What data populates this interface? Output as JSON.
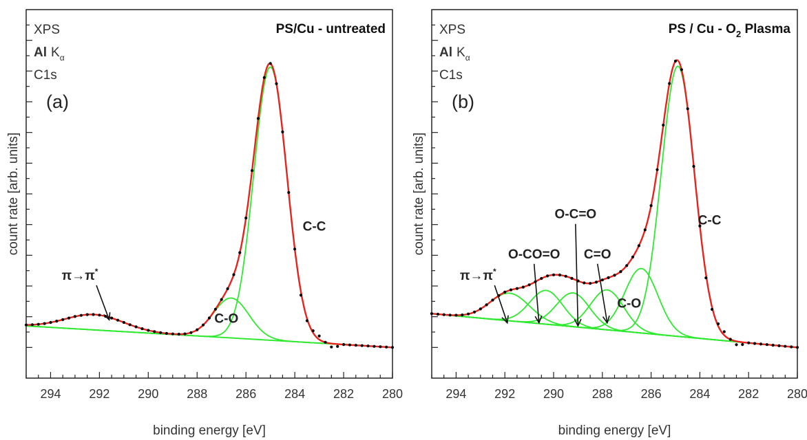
{
  "colors": {
    "envelope": "#e8221c",
    "component": "#2eea2e",
    "data": "#000000",
    "axis": "#222222"
  },
  "chart_data": [
    {
      "panel": "a",
      "type": "line",
      "title": "PS/Cu - untreated",
      "corner_labels": {
        "technique": "XPS",
        "source": "Al",
        "source_sub": "K",
        "source_sub2": "α",
        "line": "C1s",
        "panel_label": "(a)"
      },
      "xlabel": "binding energy [eV]",
      "ylabel": "count rate [arb. units]",
      "xlim": [
        295,
        280
      ],
      "xticks": [
        294,
        292,
        290,
        288,
        286,
        284,
        282,
        280
      ],
      "ylim": [
        -0.1,
        1.1
      ],
      "x_reversed": true,
      "y_tick_labels": false,
      "background": {
        "name": "",
        "x": [
          295,
          280
        ],
        "y": [
          0.07,
          0.0
        ]
      },
      "components": [
        {
          "label": "C-C",
          "center": 285.0,
          "height": 0.89,
          "fwhm": 1.6
        },
        {
          "label": "C-O",
          "center": 286.6,
          "height": 0.13,
          "fwhm": 1.7
        },
        {
          "label": "π→π*",
          "center": 292.2,
          "height": 0.05,
          "fwhm": 2.8
        }
      ],
      "measured": {
        "x_start": 295,
        "x_end": 280,
        "step": 0.25
      },
      "annotations": [
        {
          "text": "C-C",
          "at_x": 283.2,
          "at_y": 0.38
        },
        {
          "text": "C-O",
          "at_x": 286.8,
          "at_y": 0.08
        },
        {
          "text": "π→π",
          "sup": "*",
          "at_x": 292.8,
          "at_y": 0.22,
          "arrow_to": [
            291.6,
            0.09
          ]
        }
      ]
    },
    {
      "panel": "b",
      "type": "line",
      "title": "PS / Cu - O",
      "title_sub": "2",
      "title_suffix": " Plasma",
      "corner_labels": {
        "technique": "XPS",
        "source": "Al",
        "source_sub": "K",
        "source_sub2": "α",
        "line": "C1s",
        "panel_label": "(b)"
      },
      "xlabel": "binding energy [eV]",
      "ylabel": "count rate [arb. units]",
      "xlim": [
        295,
        280
      ],
      "xticks": [
        294,
        292,
        290,
        288,
        286,
        284,
        282,
        280
      ],
      "ylim": [
        -0.1,
        1.1
      ],
      "x_reversed": true,
      "y_tick_labels": false,
      "background": {
        "name": "",
        "x": [
          295,
          280
        ],
        "y": [
          0.11,
          0.0
        ]
      },
      "components": [
        {
          "label": "C-C",
          "center": 284.9,
          "height": 0.88,
          "fwhm": 1.6
        },
        {
          "label": "C-O",
          "center": 286.4,
          "height": 0.21,
          "fwhm": 1.6
        },
        {
          "label": "C=O",
          "center": 287.8,
          "height": 0.13,
          "fwhm": 1.6
        },
        {
          "label": "O-C=O",
          "center": 289.2,
          "height": 0.11,
          "fwhm": 1.6
        },
        {
          "label": "O-CO=O",
          "center": 290.3,
          "height": 0.11,
          "fwhm": 1.6
        },
        {
          "label": "π→π*",
          "center": 291.8,
          "height": 0.09,
          "fwhm": 1.9
        }
      ],
      "measured": {
        "x_start": 295,
        "x_end": 280,
        "step": 0.25
      },
      "annotations": [
        {
          "text": "C-C",
          "at_x": 283.6,
          "at_y": 0.4
        },
        {
          "text": "C-O",
          "at_x": 286.9,
          "at_y": 0.13
        },
        {
          "text": "C=O",
          "at_x": 288.2,
          "at_y": 0.29,
          "arrow_to": [
            287.8,
            0.08
          ]
        },
        {
          "text": "O-C=O",
          "at_x": 289.1,
          "at_y": 0.42,
          "arrow_to": [
            289.0,
            0.07
          ]
        },
        {
          "text": "O-CO=O",
          "at_x": 290.8,
          "at_y": 0.29,
          "arrow_to": [
            290.6,
            0.08
          ]
        },
        {
          "text": "π→π",
          "sup": "*",
          "at_x": 293.1,
          "at_y": 0.22,
          "arrow_to": [
            291.9,
            0.08
          ]
        }
      ]
    }
  ]
}
